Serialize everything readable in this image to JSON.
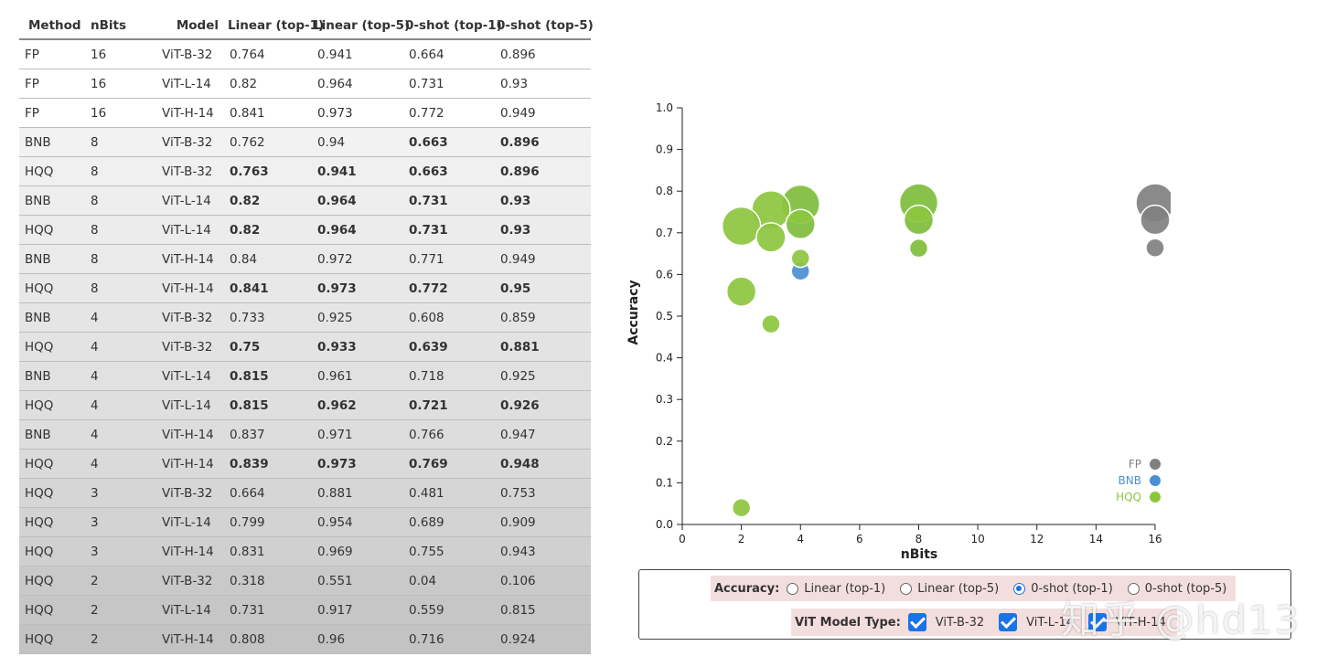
{
  "table": {
    "headers": [
      "Method",
      "nBits",
      "Model",
      "Linear (top-1)",
      "Linear (top-5)",
      "0-shot (top-1)",
      "0-shot (top-5)"
    ],
    "rows": [
      {
        "cells": [
          "FP",
          "16",
          "ViT-B-32",
          "0.764",
          "0.941",
          "0.664",
          "0.896"
        ],
        "bold": [
          false,
          false,
          false,
          false
        ]
      },
      {
        "cells": [
          "FP",
          "16",
          "ViT-L-14",
          "0.82",
          "0.964",
          "0.731",
          "0.93"
        ],
        "bold": [
          false,
          false,
          false,
          false
        ]
      },
      {
        "cells": [
          "FP",
          "16",
          "ViT-H-14",
          "0.841",
          "0.973",
          "0.772",
          "0.949"
        ],
        "bold": [
          false,
          false,
          false,
          false
        ]
      },
      {
        "cells": [
          "BNB",
          "8",
          "ViT-B-32",
          "0.762",
          "0.94",
          "0.663",
          "0.896"
        ],
        "bold": [
          false,
          false,
          true,
          true
        ]
      },
      {
        "cells": [
          "HQQ",
          "8",
          "ViT-B-32",
          "0.763",
          "0.941",
          "0.663",
          "0.896"
        ],
        "bold": [
          true,
          true,
          true,
          true
        ]
      },
      {
        "cells": [
          "BNB",
          "8",
          "ViT-L-14",
          "0.82",
          "0.964",
          "0.731",
          "0.93"
        ],
        "bold": [
          true,
          true,
          true,
          true
        ]
      },
      {
        "cells": [
          "HQQ",
          "8",
          "ViT-L-14",
          "0.82",
          "0.964",
          "0.731",
          "0.93"
        ],
        "bold": [
          true,
          true,
          true,
          true
        ]
      },
      {
        "cells": [
          "BNB",
          "8",
          "ViT-H-14",
          "0.84",
          "0.972",
          "0.771",
          "0.949"
        ],
        "bold": [
          false,
          false,
          false,
          false
        ]
      },
      {
        "cells": [
          "HQQ",
          "8",
          "ViT-H-14",
          "0.841",
          "0.973",
          "0.772",
          "0.95"
        ],
        "bold": [
          true,
          true,
          true,
          true
        ]
      },
      {
        "cells": [
          "BNB",
          "4",
          "ViT-B-32",
          "0.733",
          "0.925",
          "0.608",
          "0.859"
        ],
        "bold": [
          false,
          false,
          false,
          false
        ]
      },
      {
        "cells": [
          "HQQ",
          "4",
          "ViT-B-32",
          "0.75",
          "0.933",
          "0.639",
          "0.881"
        ],
        "bold": [
          true,
          true,
          true,
          true
        ]
      },
      {
        "cells": [
          "BNB",
          "4",
          "ViT-L-14",
          "0.815",
          "0.961",
          "0.718",
          "0.925"
        ],
        "bold": [
          true,
          false,
          false,
          false
        ]
      },
      {
        "cells": [
          "HQQ",
          "4",
          "ViT-L-14",
          "0.815",
          "0.962",
          "0.721",
          "0.926"
        ],
        "bold": [
          true,
          true,
          true,
          true
        ]
      },
      {
        "cells": [
          "BNB",
          "4",
          "ViT-H-14",
          "0.837",
          "0.971",
          "0.766",
          "0.947"
        ],
        "bold": [
          false,
          false,
          false,
          false
        ]
      },
      {
        "cells": [
          "HQQ",
          "4",
          "ViT-H-14",
          "0.839",
          "0.973",
          "0.769",
          "0.948"
        ],
        "bold": [
          true,
          true,
          true,
          true
        ]
      },
      {
        "cells": [
          "HQQ",
          "3",
          "ViT-B-32",
          "0.664",
          "0.881",
          "0.481",
          "0.753"
        ],
        "bold": [
          false,
          false,
          false,
          false
        ]
      },
      {
        "cells": [
          "HQQ",
          "3",
          "ViT-L-14",
          "0.799",
          "0.954",
          "0.689",
          "0.909"
        ],
        "bold": [
          false,
          false,
          false,
          false
        ]
      },
      {
        "cells": [
          "HQQ",
          "3",
          "ViT-H-14",
          "0.831",
          "0.969",
          "0.755",
          "0.943"
        ],
        "bold": [
          false,
          false,
          false,
          false
        ]
      },
      {
        "cells": [
          "HQQ",
          "2",
          "ViT-B-32",
          "0.318",
          "0.551",
          "0.04",
          "0.106"
        ],
        "bold": [
          false,
          false,
          false,
          false
        ]
      },
      {
        "cells": [
          "HQQ",
          "2",
          "ViT-L-14",
          "0.731",
          "0.917",
          "0.559",
          "0.815"
        ],
        "bold": [
          false,
          false,
          false,
          false
        ]
      },
      {
        "cells": [
          "HQQ",
          "2",
          "ViT-H-14",
          "0.808",
          "0.96",
          "0.716",
          "0.924"
        ],
        "bold": [
          false,
          false,
          false,
          false
        ]
      }
    ],
    "row_shades": [
      "#ffffff",
      "#ffffff",
      "#ffffff",
      "#f2f2f2",
      "#f0f0f0",
      "#eeeeee",
      "#ececec",
      "#eaeaea",
      "#e8e8e8",
      "#e5e5e5",
      "#e3e3e3",
      "#e1e1e1",
      "#dfdfdf",
      "#dddddd",
      "#dadada",
      "#d6d6d6",
      "#d3d3d3",
      "#d0d0d0",
      "#c9c9c9",
      "#c6c6c6",
      "#c3c3c3"
    ]
  },
  "chart_data": {
    "type": "scatter",
    "xlabel": "nBits",
    "ylabel": "Accuracy",
    "xlim": [
      0,
      16
    ],
    "ylim": [
      0,
      1.0
    ],
    "xticks": [
      "0",
      "2",
      "4",
      "6",
      "8",
      "10",
      "12",
      "14",
      "16"
    ],
    "yticks": [
      "0.0",
      "0.1",
      "0.2",
      "0.3",
      "0.4",
      "0.5",
      "0.6",
      "0.7",
      "0.8",
      "0.9",
      "1.0"
    ],
    "legend_position": "bottom-right",
    "series": [
      {
        "name": "FP",
        "color": "#808080",
        "points": [
          {
            "x": 16,
            "y": 0.664,
            "size": "ViT-B-32"
          },
          {
            "x": 16,
            "y": 0.731,
            "size": "ViT-L-14"
          },
          {
            "x": 16,
            "y": 0.772,
            "size": "ViT-H-14"
          }
        ]
      },
      {
        "name": "BNB",
        "color": "#4a8fd4",
        "points": [
          {
            "x": 8,
            "y": 0.663,
            "size": "ViT-B-32"
          },
          {
            "x": 8,
            "y": 0.731,
            "size": "ViT-L-14"
          },
          {
            "x": 8,
            "y": 0.771,
            "size": "ViT-H-14"
          },
          {
            "x": 4,
            "y": 0.608,
            "size": "ViT-B-32"
          },
          {
            "x": 4,
            "y": 0.718,
            "size": "ViT-L-14"
          },
          {
            "x": 4,
            "y": 0.766,
            "size": "ViT-H-14"
          }
        ]
      },
      {
        "name": "HQQ",
        "color": "#8cc63f",
        "points": [
          {
            "x": 8,
            "y": 0.663,
            "size": "ViT-B-32"
          },
          {
            "x": 8,
            "y": 0.731,
            "size": "ViT-L-14"
          },
          {
            "x": 8,
            "y": 0.772,
            "size": "ViT-H-14"
          },
          {
            "x": 4,
            "y": 0.639,
            "size": "ViT-B-32"
          },
          {
            "x": 4,
            "y": 0.721,
            "size": "ViT-L-14"
          },
          {
            "x": 4,
            "y": 0.769,
            "size": "ViT-H-14"
          },
          {
            "x": 3,
            "y": 0.481,
            "size": "ViT-B-32"
          },
          {
            "x": 3,
            "y": 0.689,
            "size": "ViT-L-14"
          },
          {
            "x": 3,
            "y": 0.755,
            "size": "ViT-H-14"
          },
          {
            "x": 2,
            "y": 0.04,
            "size": "ViT-B-32"
          },
          {
            "x": 2,
            "y": 0.559,
            "size": "ViT-L-14"
          },
          {
            "x": 2,
            "y": 0.716,
            "size": "ViT-H-14"
          }
        ]
      }
    ]
  },
  "controls": {
    "accuracy_label": "Accuracy:",
    "accuracy_options": [
      {
        "label": "Linear (top-1)",
        "selected": false
      },
      {
        "label": "Linear (top-5)",
        "selected": false
      },
      {
        "label": "0-shot (top-1)",
        "selected": true
      },
      {
        "label": "0-shot (top-5)",
        "selected": false
      }
    ],
    "model_label": "ViT Model Type:",
    "model_options": [
      {
        "label": "ViT-B-32",
        "checked": true
      },
      {
        "label": "ViT-L-14",
        "checked": true
      },
      {
        "label": "ViT-H-14",
        "checked": true
      }
    ]
  },
  "watermark": "知乎 @hd13"
}
